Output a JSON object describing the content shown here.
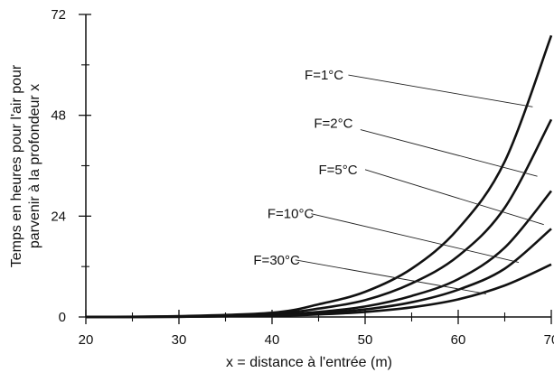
{
  "chart_data": {
    "type": "line",
    "xlabel": "x = distance à l'entrée (m)",
    "ylabel_lines": [
      "Temps en heures pour l'air pour",
      "parvenir à la profondeur x"
    ],
    "xlim": [
      20,
      70
    ],
    "ylim": [
      0,
      72
    ],
    "x_major_ticks": [
      20,
      30,
      40,
      50,
      60,
      70
    ],
    "x_tick_labels": [
      "20",
      "30",
      "40",
      "50",
      "60",
      "70"
    ],
    "y_major_ticks": [
      0,
      24,
      48,
      72
    ],
    "y_tick_labels": [
      "0",
      "24",
      "48",
      "72"
    ],
    "grid": false,
    "line_color": "#111111",
    "series": [
      {
        "name": "F=1°C",
        "x": [
          20,
          30,
          40,
          45,
          50,
          55,
          60,
          65,
          70
        ],
        "y": [
          0,
          0.2,
          1.0,
          3.0,
          6.0,
          11.5,
          21.0,
          37.0,
          67.0
        ]
      },
      {
        "name": "F=2°C",
        "x": [
          20,
          30,
          40,
          45,
          50,
          55,
          60,
          65,
          70
        ],
        "y": [
          0,
          0.1,
          0.8,
          2.0,
          4.0,
          8.0,
          14.5,
          26.0,
          47.0
        ]
      },
      {
        "name": "F=5°C",
        "x": [
          20,
          30,
          40,
          45,
          50,
          55,
          60,
          65,
          70
        ],
        "y": [
          0,
          0.1,
          0.5,
          1.2,
          2.5,
          5.0,
          9.0,
          16.5,
          30.0
        ]
      },
      {
        "name": "F=10°C",
        "x": [
          20,
          30,
          40,
          45,
          50,
          55,
          60,
          65,
          70
        ],
        "y": [
          0,
          0.05,
          0.4,
          0.9,
          1.8,
          3.5,
          6.5,
          11.5,
          21.0
        ]
      },
      {
        "name": "F=30°C",
        "x": [
          20,
          30,
          40,
          45,
          50,
          55,
          60,
          65,
          70
        ],
        "y": [
          0,
          0.05,
          0.3,
          0.6,
          1.2,
          2.3,
          4.2,
          7.5,
          12.5
        ]
      }
    ],
    "annotations": [
      {
        "text": "F=1°C",
        "label_x": 43.5,
        "label_y": 56.5,
        "line_end": [
          48.2,
          56.5
        ],
        "arrow_to": [
          68.0,
          50.0
        ]
      },
      {
        "text": "F=2°C",
        "label_x": 44.5,
        "label_y": 45.0,
        "line_end": [
          49.5,
          43.5
        ],
        "arrow_to": [
          68.5,
          33.5
        ]
      },
      {
        "text": "F=5°C",
        "label_x": 45.0,
        "label_y": 34.0,
        "line_end": [
          50.0,
          34.0
        ],
        "arrow_to": [
          69.2,
          22.0
        ]
      },
      {
        "text": "F=10°C",
        "label_x": 39.5,
        "label_y": 23.5,
        "line_end": [
          44.2,
          23.5
        ],
        "arrow_to": [
          66.5,
          13.0
        ]
      },
      {
        "text": "F=30°C",
        "label_x": 38.0,
        "label_y": 12.5,
        "line_end": [
          42.5,
          12.5
        ],
        "arrow_to": [
          63.0,
          5.5
        ]
      }
    ]
  }
}
